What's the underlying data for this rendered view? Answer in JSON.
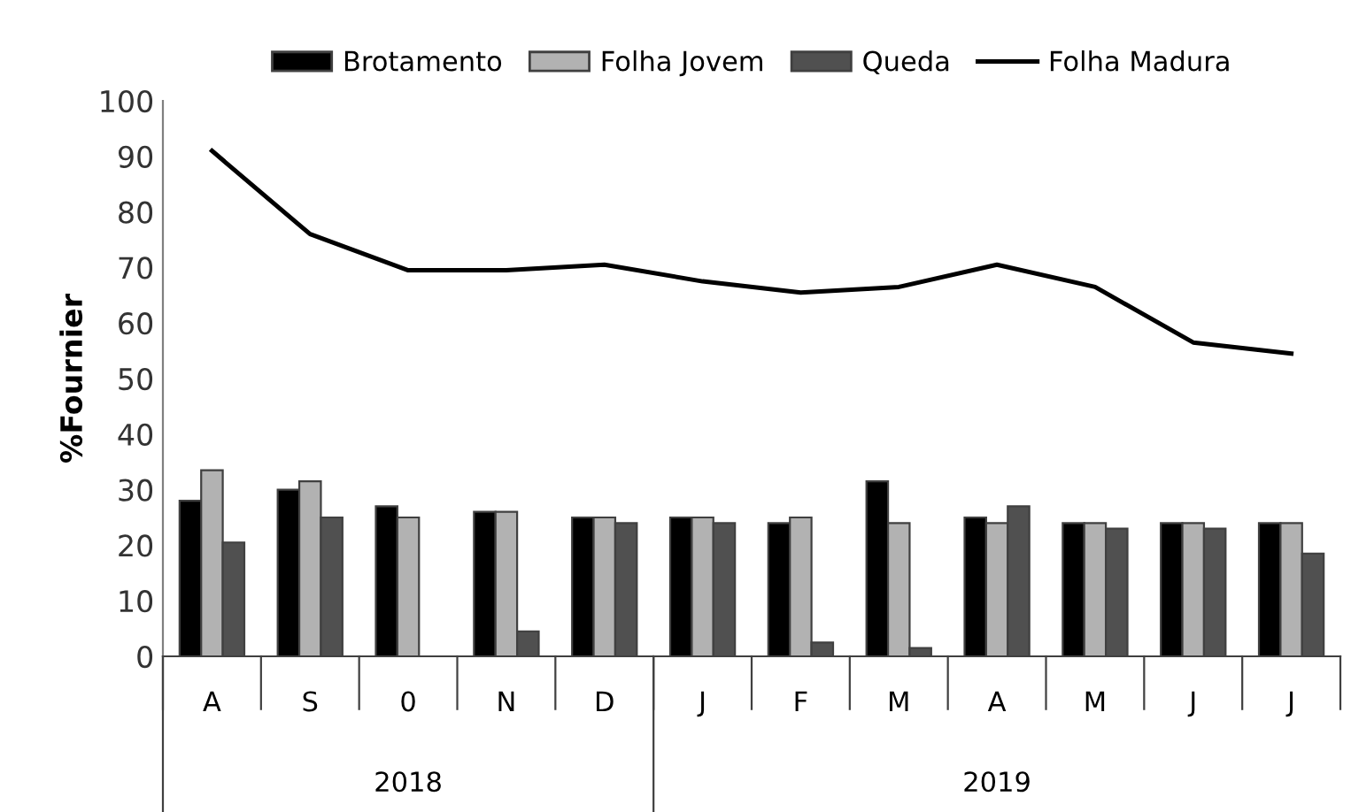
{
  "chart_data": {
    "type": "bar",
    "ylabel": "%Fournier",
    "categories": [
      "A",
      "S",
      "0",
      "N",
      "D",
      "J",
      "F",
      "M",
      "A",
      "M",
      "J",
      "J"
    ],
    "series": [
      {
        "name": "Brotamento",
        "color": "#000000",
        "values": [
          28,
          30,
          27,
          26,
          25,
          25,
          24,
          31.5,
          25,
          24,
          24,
          24
        ]
      },
      {
        "name": "Folha Jovem",
        "color": "#b2b2b2",
        "values": [
          33.5,
          31.5,
          25,
          26,
          25,
          25,
          25,
          24,
          24,
          24,
          24,
          24
        ]
      },
      {
        "name": "Queda",
        "color": "#505050",
        "values": [
          20.5,
          25,
          0,
          4.5,
          24,
          24,
          2.5,
          1.5,
          27,
          23,
          23,
          18.5
        ]
      },
      {
        "name": "Folha Madura",
        "type": "line",
        "color": "#000000",
        "values": [
          91,
          76,
          69.5,
          69.5,
          70.5,
          67.5,
          65.5,
          66.5,
          70.5,
          66.5,
          56.5,
          54.5
        ]
      }
    ],
    "ylim": [
      0,
      100
    ],
    "yticks": [
      0,
      10,
      20,
      30,
      40,
      50,
      60,
      70,
      80,
      90,
      100
    ],
    "grid": false,
    "legend": "top",
    "marker": "none",
    "line_style": "solid",
    "annotations": [
      "2018",
      "2019"
    ]
  }
}
